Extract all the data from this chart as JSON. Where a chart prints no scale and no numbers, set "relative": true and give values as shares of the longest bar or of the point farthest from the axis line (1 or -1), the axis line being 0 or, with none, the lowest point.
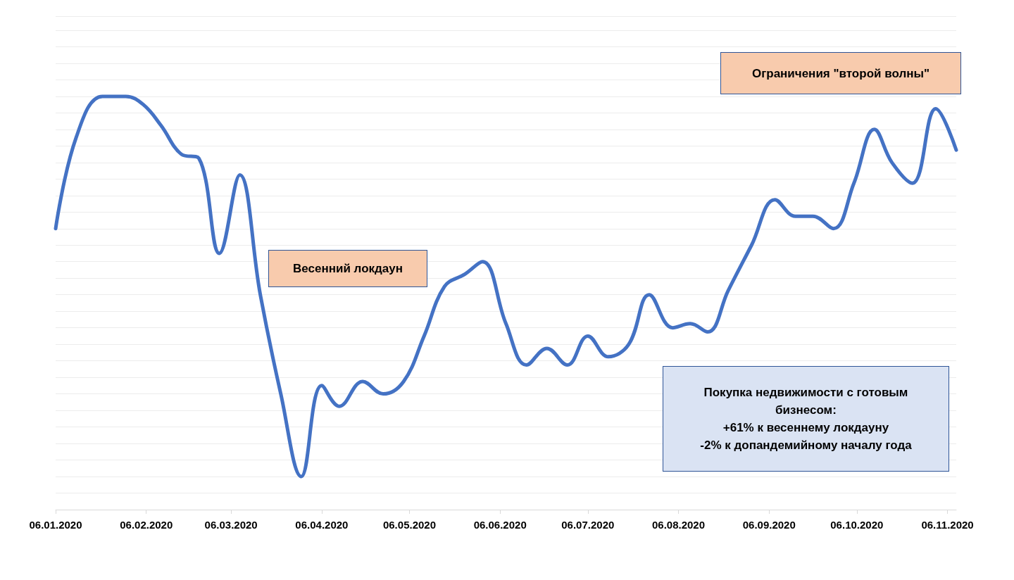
{
  "chart_data": {
    "type": "line",
    "relative": true,
    "grid": "y",
    "marker": "none",
    "line_style": "solid",
    "xlim": [
      "2020-01-06",
      "2020-11-09"
    ],
    "xticks": [
      {
        "value": "2020-01-06",
        "label": "06.01.2020"
      },
      {
        "value": "2020-02-06",
        "label": "06.02.2020"
      },
      {
        "value": "2020-03-06",
        "label": "06.03.2020"
      },
      {
        "value": "2020-04-06",
        "label": "06.04.2020"
      },
      {
        "value": "2020-05-06",
        "label": "06.05.2020"
      },
      {
        "value": "2020-06-06",
        "label": "06.06.2020"
      },
      {
        "value": "2020-07-06",
        "label": "06.07.2020"
      },
      {
        "value": "2020-08-06",
        "label": "06.08.2020"
      },
      {
        "value": "2020-09-06",
        "label": "06.09.2020"
      },
      {
        "value": "2020-10-06",
        "label": "06.10.2020"
      },
      {
        "value": "2020-11-06",
        "label": "06.11.2020"
      }
    ],
    "x": [
      "2020-01-06",
      "2020-01-13",
      "2020-01-22",
      "2020-01-30",
      "2020-02-05",
      "2020-02-11",
      "2020-02-18",
      "2020-02-24",
      "2020-03-02",
      "2020-03-09",
      "2020-03-16",
      "2020-03-23",
      "2020-03-30",
      "2020-04-06",
      "2020-04-12",
      "2020-04-20",
      "2020-04-27",
      "2020-05-04",
      "2020-05-11",
      "2020-05-18",
      "2020-05-25",
      "2020-05-31",
      "2020-06-08",
      "2020-06-15",
      "2020-06-22",
      "2020-06-29",
      "2020-07-06",
      "2020-07-13",
      "2020-07-20",
      "2020-07-27",
      "2020-08-04",
      "2020-08-10",
      "2020-08-16",
      "2020-08-23",
      "2020-08-31",
      "2020-09-08",
      "2020-09-15",
      "2020-09-21",
      "2020-09-28",
      "2020-10-05",
      "2020-10-12",
      "2020-10-18",
      "2020-10-25",
      "2020-11-02",
      "2020-11-09"
    ],
    "series": [
      {
        "color": "#4472c4",
        "values": [
          0.68,
          0.9,
          1,
          1,
          0.98,
          0.93,
          0.86,
          0.85,
          0.62,
          0.81,
          0.52,
          0.28,
          0.08,
          0.3,
          0.25,
          0.31,
          0.28,
          0.31,
          0.42,
          0.54,
          0.57,
          0.6,
          0.45,
          0.35,
          0.39,
          0.35,
          0.42,
          0.37,
          0.4,
          0.52,
          0.44,
          0.45,
          0.43,
          0.53,
          0.64,
          0.75,
          0.71,
          0.71,
          0.68,
          0.79,
          0.92,
          0.84,
          0.79,
          0.97,
          0.87
        ]
      }
    ],
    "annotations": [
      "Ограничения \"второй волны\"",
      "Весенний локдаун",
      "Покупка недвижимости с готовым\nбизнесом:\n+61% к весеннему локдауну\n-2% к допандемийному началу года"
    ]
  }
}
